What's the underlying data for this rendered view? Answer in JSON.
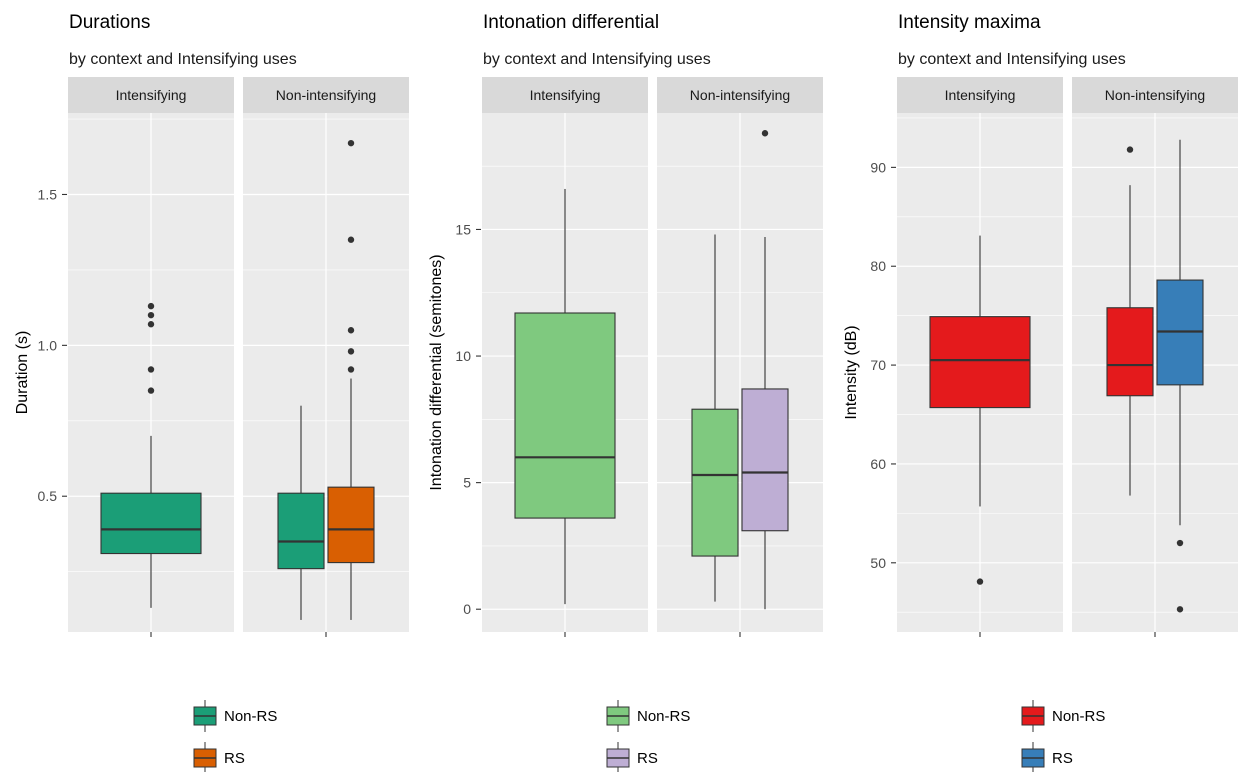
{
  "chart_data": [
    {
      "type": "boxplot",
      "title": "Durations",
      "subtitle": "by context and Intensifying uses",
      "ylabel": "Duration (s)",
      "xlabel": "",
      "ylim": [
        0.05,
        1.77
      ],
      "yticks": [
        0.5,
        1.0,
        1.5
      ],
      "ytick_labels": [
        "0.5",
        "1.0",
        "1.5"
      ],
      "facets": [
        "Intensifying",
        "Non-intensifying"
      ],
      "legend": [
        {
          "name": "Non-RS",
          "color": "#1b9e77"
        },
        {
          "name": "RS",
          "color": "#d95f02"
        }
      ],
      "boxes": [
        {
          "facet": "Intensifying",
          "group": "Non-RS",
          "min": 0.13,
          "q1": 0.31,
          "median": 0.39,
          "q3": 0.51,
          "max": 0.7,
          "outliers": [
            0.85,
            0.92,
            1.07,
            1.1,
            1.13
          ]
        },
        {
          "facet": "Non-intensifying",
          "group": "Non-RS",
          "min": 0.09,
          "q1": 0.26,
          "median": 0.35,
          "q3": 0.51,
          "max": 0.8,
          "outliers": []
        },
        {
          "facet": "Non-intensifying",
          "group": "RS",
          "min": 0.09,
          "q1": 0.28,
          "median": 0.39,
          "q3": 0.53,
          "max": 0.89,
          "outliers": [
            0.92,
            0.98,
            1.05,
            1.35,
            1.67
          ]
        }
      ]
    },
    {
      "type": "boxplot",
      "title": "Intonation differential",
      "subtitle": "by context and Intensifying uses",
      "ylabel": "Intonation differential (semitones)",
      "xlabel": "",
      "ylim": [
        -0.9,
        19.6
      ],
      "yticks": [
        0,
        5,
        10,
        15
      ],
      "ytick_labels": [
        "0",
        "5",
        "10",
        "15"
      ],
      "facets": [
        "Intensifying",
        "Non-intensifying"
      ],
      "legend": [
        {
          "name": "Non-RS",
          "color": "#7fc97f"
        },
        {
          "name": "RS",
          "color": "#beaed4"
        }
      ],
      "boxes": [
        {
          "facet": "Intensifying",
          "group": "Non-RS",
          "min": 0.2,
          "q1": 3.6,
          "median": 6.0,
          "q3": 11.7,
          "max": 16.6,
          "outliers": []
        },
        {
          "facet": "Non-intensifying",
          "group": "Non-RS",
          "min": 0.3,
          "q1": 2.1,
          "median": 5.3,
          "q3": 7.9,
          "max": 14.8,
          "outliers": []
        },
        {
          "facet": "Non-intensifying",
          "group": "RS",
          "min": 0.0,
          "q1": 3.1,
          "median": 5.4,
          "q3": 8.7,
          "max": 14.7,
          "outliers": [
            18.8
          ]
        }
      ]
    },
    {
      "type": "boxplot",
      "title": "Intensity maxima",
      "subtitle": "by context and Intensifying uses",
      "ylabel": "Intensity (dB)",
      "xlabel": "",
      "ylim": [
        43.0,
        95.5
      ],
      "yticks": [
        50,
        60,
        70,
        80,
        90
      ],
      "ytick_labels": [
        "50",
        "60",
        "70",
        "80",
        "90"
      ],
      "facets": [
        "Intensifying",
        "Non-intensifying"
      ],
      "legend": [
        {
          "name": "Non-RS",
          "color": "#e41a1c"
        },
        {
          "name": "RS",
          "color": "#377eb8"
        }
      ],
      "boxes": [
        {
          "facet": "Intensifying",
          "group": "Non-RS",
          "min": 55.7,
          "q1": 65.7,
          "median": 70.5,
          "q3": 74.9,
          "max": 83.1,
          "outliers": [
            48.1
          ]
        },
        {
          "facet": "Non-intensifying",
          "group": "Non-RS",
          "min": 56.8,
          "q1": 66.9,
          "median": 70.0,
          "q3": 75.8,
          "max": 88.2,
          "outliers": [
            91.8
          ]
        },
        {
          "facet": "Non-intensifying",
          "group": "RS",
          "min": 53.8,
          "q1": 68.0,
          "median": 73.4,
          "q3": 78.6,
          "max": 92.8,
          "outliers": [
            45.3,
            52.0
          ]
        }
      ]
    }
  ]
}
